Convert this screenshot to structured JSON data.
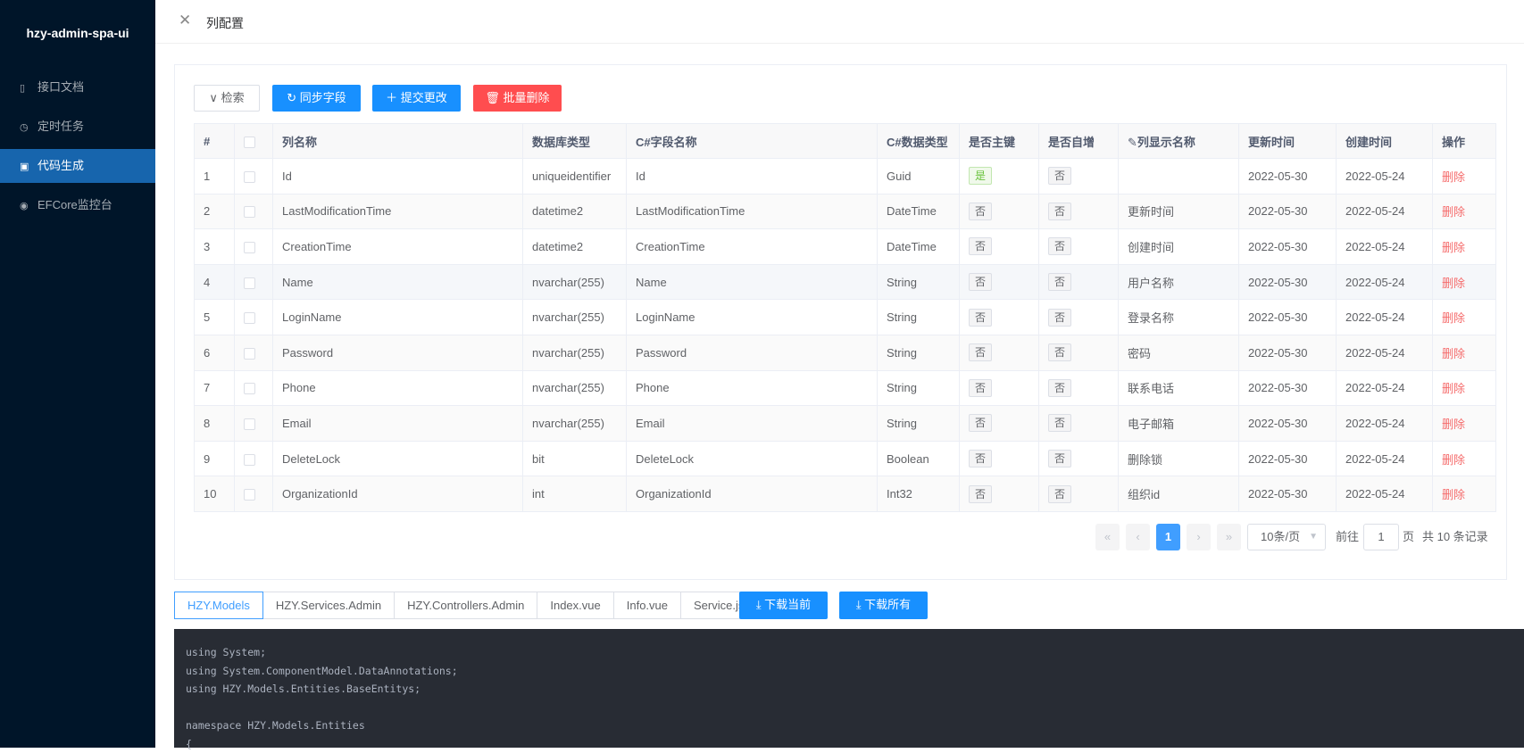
{
  "app_title": "hzy-admin-spa-ui",
  "sidebar": {
    "items": [
      {
        "label": "接口文档",
        "icon": "doc-icon"
      },
      {
        "label": "定时任务",
        "icon": "clock-icon"
      },
      {
        "label": "代码生成",
        "icon": "terminal-icon",
        "active": true
      },
      {
        "label": "EFCore监控台",
        "icon": "dashboard-icon"
      }
    ]
  },
  "header": {
    "title": "列配置"
  },
  "toolbar": {
    "search": "检索",
    "sync": "同步字段",
    "submit": "提交更改",
    "batch_delete": "批量删除"
  },
  "colors": {
    "primary": "#1890ff",
    "danger": "#ff4d4f",
    "sidebar": "#001529"
  },
  "table": {
    "headers": [
      "#",
      "",
      "列名称",
      "数据库类型",
      "C#字段名称",
      "C#数据类型",
      "是否主键",
      "是否自增",
      "列显示名称",
      "更新时间",
      "创建时间",
      "操作"
    ],
    "rows": [
      [
        "1",
        "Id",
        "uniqueidentifier",
        "Id",
        "Guid",
        "是",
        "否",
        "",
        "2022-05-30",
        "2022-05-24",
        "删除"
      ],
      [
        "2",
        "LastModificationTime",
        "datetime2",
        "LastModificationTime",
        "DateTime",
        "否",
        "否",
        "更新时间",
        "2022-05-30",
        "2022-05-24",
        "删除"
      ],
      [
        "3",
        "CreationTime",
        "datetime2",
        "CreationTime",
        "DateTime",
        "否",
        "否",
        "创建时间",
        "2022-05-30",
        "2022-05-24",
        "删除"
      ],
      [
        "4",
        "Name",
        "nvarchar(255)",
        "Name",
        "String",
        "否",
        "否",
        "用户名称",
        "2022-05-30",
        "2022-05-24",
        "删除"
      ],
      [
        "5",
        "LoginName",
        "nvarchar(255)",
        "LoginName",
        "String",
        "否",
        "否",
        "登录名称",
        "2022-05-30",
        "2022-05-24",
        "删除"
      ],
      [
        "6",
        "Password",
        "nvarchar(255)",
        "Password",
        "String",
        "否",
        "否",
        "密码",
        "2022-05-30",
        "2022-05-24",
        "删除"
      ],
      [
        "7",
        "Phone",
        "nvarchar(255)",
        "Phone",
        "String",
        "否",
        "否",
        "联系电话",
        "2022-05-30",
        "2022-05-24",
        "删除"
      ],
      [
        "8",
        "Email",
        "nvarchar(255)",
        "Email",
        "String",
        "否",
        "否",
        "电子邮箱",
        "2022-05-30",
        "2022-05-24",
        "删除"
      ],
      [
        "9",
        "DeleteLock",
        "bit",
        "DeleteLock",
        "Boolean",
        "否",
        "否",
        "删除锁",
        "2022-05-30",
        "2022-05-24",
        "删除"
      ],
      [
        "10",
        "OrganizationId",
        "int",
        "OrganizationId",
        "Int32",
        "否",
        "否",
        "组织id",
        "2022-05-30",
        "2022-05-24",
        "删除"
      ]
    ]
  },
  "pagination": {
    "current": "1",
    "page_size": "10条/页",
    "goto_label": "前往",
    "goto_value": "1",
    "page_unit": "页",
    "total": "共 10 条记录"
  },
  "code_tabs": [
    "HZY.Models",
    "HZY.Services.Admin",
    "HZY.Controllers.Admin",
    "Index.vue",
    "Info.vue",
    "Service.js"
  ],
  "download": {
    "current": "下载当前",
    "all": "下载所有"
  },
  "code": "using System;\nusing System.ComponentModel.DataAnnotations;\nusing HZY.Models.Entities.BaseEntitys;\n\nnamespace HZY.Models.Entities\n{"
}
